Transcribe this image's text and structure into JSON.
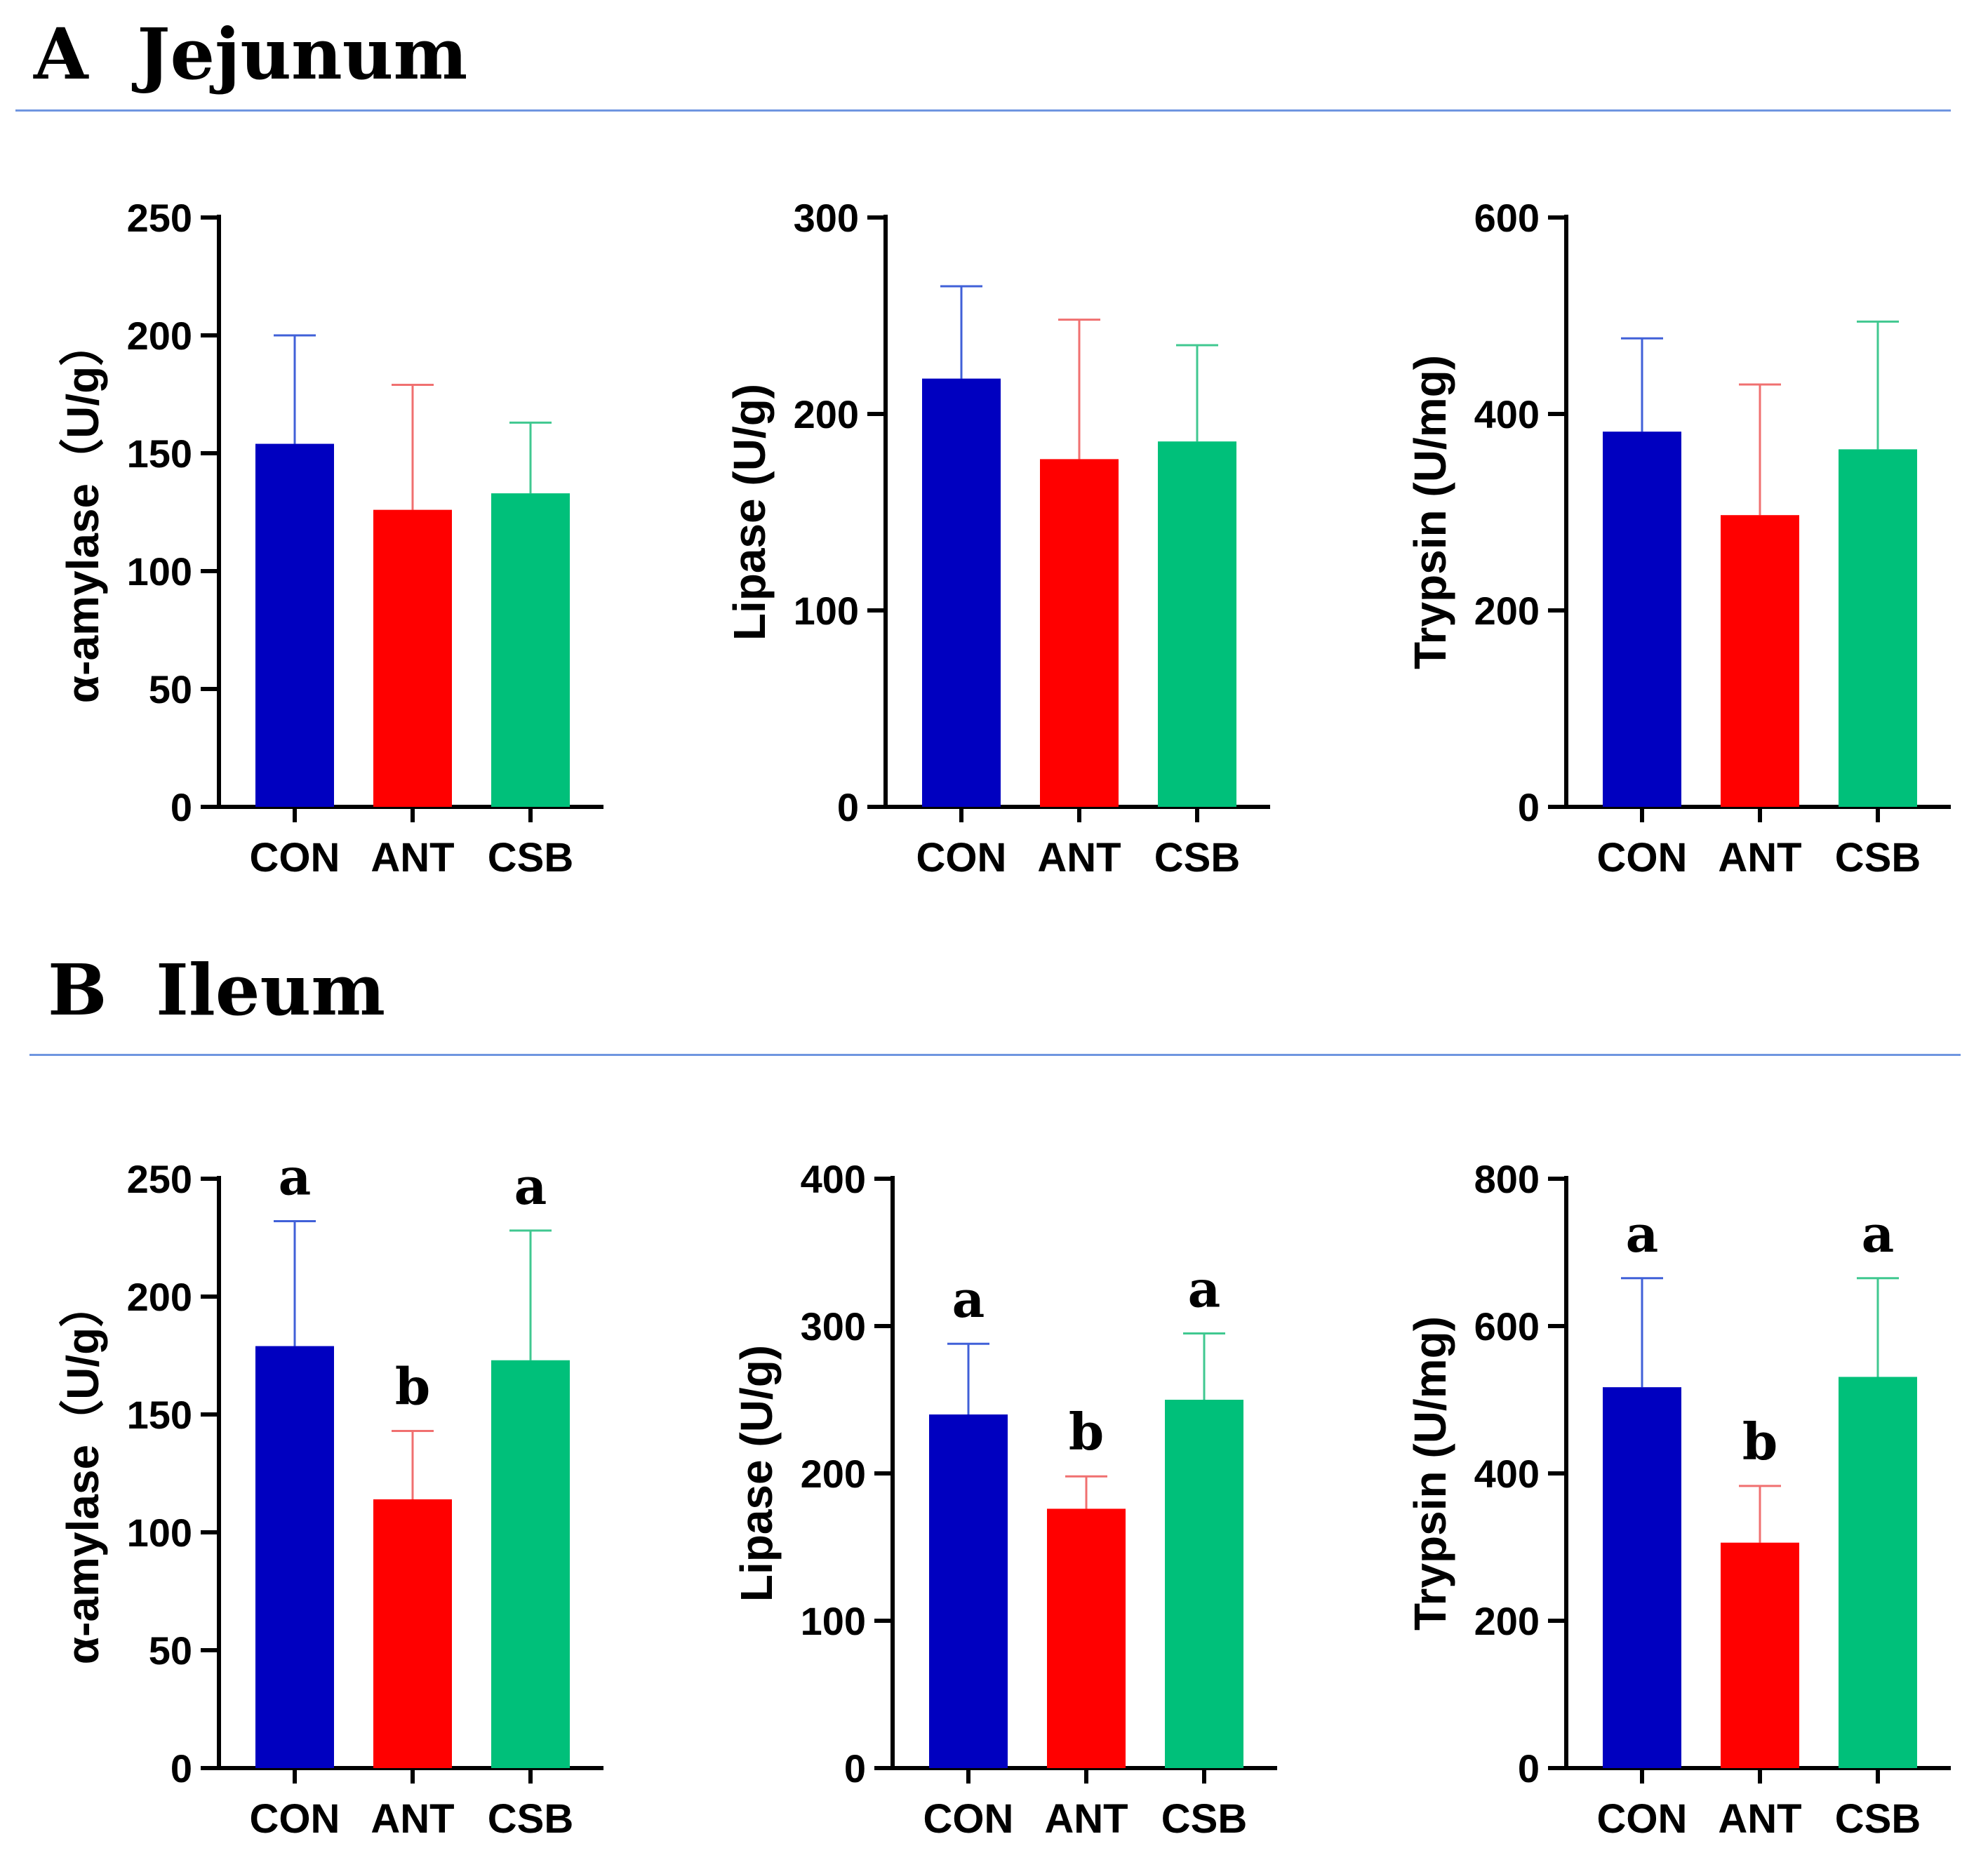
{
  "sections": [
    {
      "letter": "A",
      "name": "Jejunum",
      "title": "A  Jejunum",
      "chart_data": [
        {
          "type": "bar",
          "ylabel": "α-amylase（U/g）",
          "categories": [
            "CON",
            "ANT",
            "CSB"
          ],
          "values": [
            154,
            126,
            133
          ],
          "errors": [
            46,
            53,
            30
          ],
          "ylim": [
            0,
            250
          ],
          "yticks": [
            0,
            50,
            100,
            150,
            200,
            250
          ],
          "labels": [
            "",
            "",
            ""
          ],
          "colors": [
            "#0000c0",
            "#ff0000",
            "#00c07a"
          ],
          "error_colors": [
            "#4060d8",
            "#f07070",
            "#40c890"
          ]
        },
        {
          "type": "bar",
          "ylabel": "Lipase (U/g)",
          "categories": [
            "CON",
            "ANT",
            "CSB"
          ],
          "values": [
            218,
            177,
            186
          ],
          "errors": [
            47,
            71,
            49
          ],
          "ylim": [
            0,
            300
          ],
          "yticks": [
            0,
            100,
            200,
            300
          ],
          "labels": [
            "",
            "",
            ""
          ],
          "colors": [
            "#0000c0",
            "#ff0000",
            "#00c07a"
          ],
          "error_colors": [
            "#4060d8",
            "#f07070",
            "#40c890"
          ]
        },
        {
          "type": "bar",
          "ylabel": "Trypsin (U/mg)",
          "categories": [
            "CON",
            "ANT",
            "CSB"
          ],
          "values": [
            382,
            297,
            364
          ],
          "errors": [
            95,
            133,
            130
          ],
          "ylim": [
            0,
            600
          ],
          "yticks": [
            0,
            200,
            400,
            600
          ],
          "labels": [
            "",
            "",
            ""
          ],
          "colors": [
            "#0000c0",
            "#ff0000",
            "#00c07a"
          ],
          "error_colors": [
            "#4060d8",
            "#f07070",
            "#40c890"
          ]
        }
      ]
    },
    {
      "letter": "B",
      "name": "Ileum",
      "title": "B  Ileum",
      "chart_data": [
        {
          "type": "bar",
          "ylabel": "α-amylase（U/g）",
          "categories": [
            "CON",
            "ANT",
            "CSB"
          ],
          "values": [
            179,
            114,
            173
          ],
          "errors": [
            53,
            29,
            55
          ],
          "ylim": [
            0,
            250
          ],
          "yticks": [
            0,
            50,
            100,
            150,
            200,
            250
          ],
          "labels": [
            "a",
            "b",
            "a"
          ],
          "colors": [
            "#0000c0",
            "#ff0000",
            "#00c07a"
          ],
          "error_colors": [
            "#4060d8",
            "#f07070",
            "#40c890"
          ]
        },
        {
          "type": "bar",
          "ylabel": "Lipase (U/g)",
          "categories": [
            "CON",
            "ANT",
            "CSB"
          ],
          "values": [
            240,
            176,
            250
          ],
          "errors": [
            48,
            22,
            45
          ],
          "ylim": [
            0,
            400
          ],
          "yticks": [
            0,
            100,
            200,
            300,
            400
          ],
          "labels": [
            "a",
            "b",
            "a"
          ],
          "colors": [
            "#0000c0",
            "#ff0000",
            "#00c07a"
          ],
          "error_colors": [
            "#4060d8",
            "#f07070",
            "#40c890"
          ]
        },
        {
          "type": "bar",
          "ylabel": "Trypsin (U/mg)",
          "categories": [
            "CON",
            "ANT",
            "CSB"
          ],
          "values": [
            517,
            306,
            531
          ],
          "errors": [
            148,
            77,
            134
          ],
          "ylim": [
            0,
            800
          ],
          "yticks": [
            0,
            200,
            400,
            600,
            800
          ],
          "labels": [
            "a",
            "b",
            "a"
          ],
          "colors": [
            "#0000c0",
            "#ff0000",
            "#00c07a"
          ],
          "error_colors": [
            "#4060d8",
            "#f07070",
            "#40c890"
          ]
        }
      ]
    }
  ]
}
